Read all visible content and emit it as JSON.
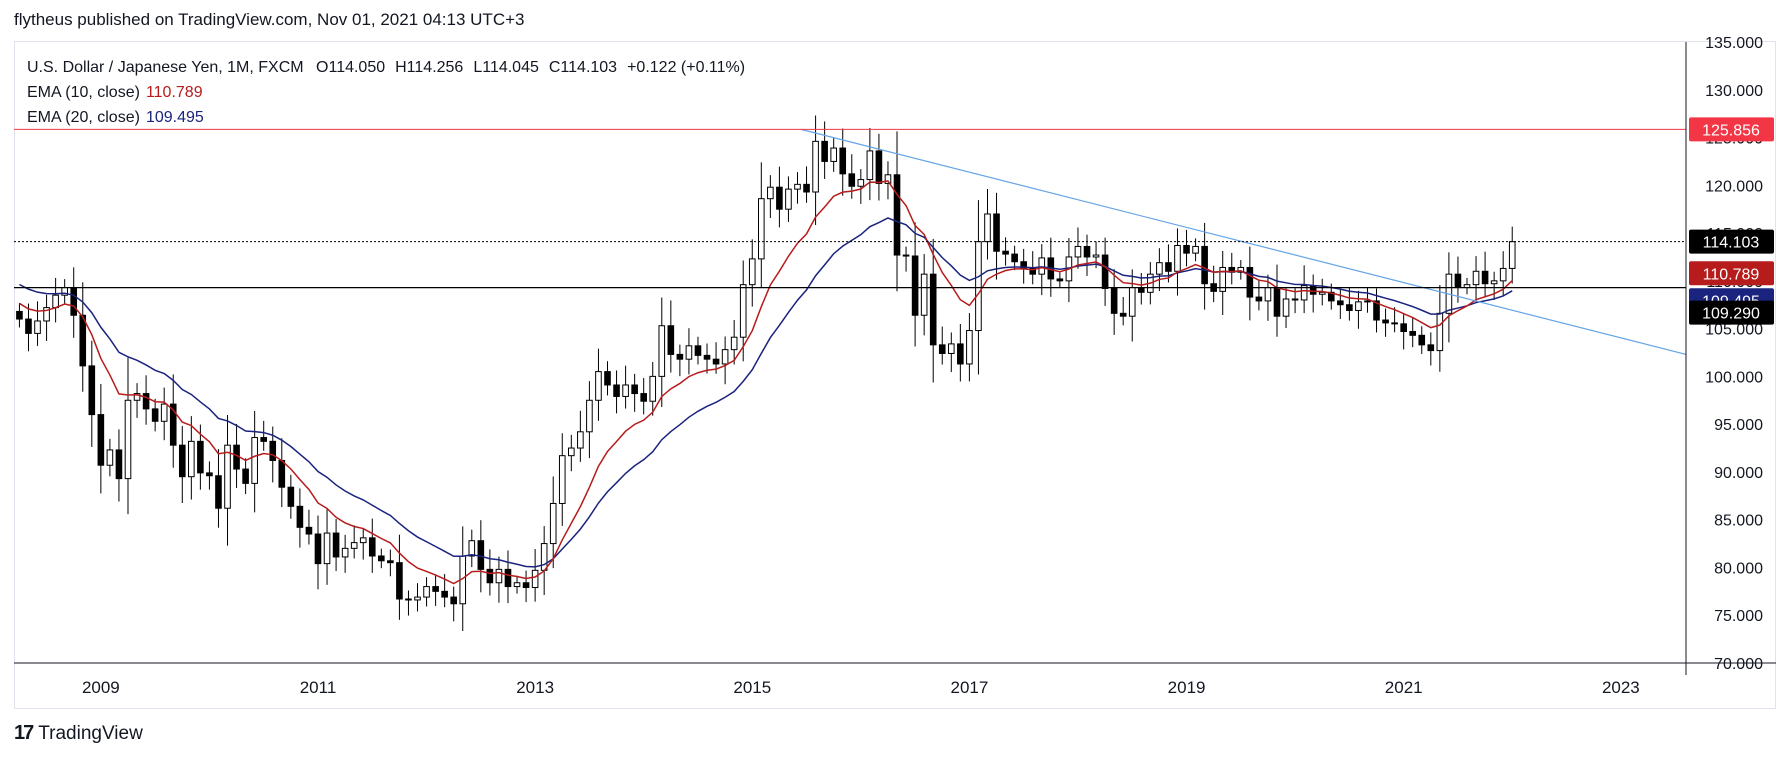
{
  "header": {
    "published": "flytheus published on TradingView.com, Nov 01, 2021 04:13 UTC+3"
  },
  "legend": {
    "symbol": "U.S. Dollar / Japanese Yen, 1M, FXCM",
    "open": "O114.050",
    "high": "H114.256",
    "low": "L114.045",
    "close": "C114.103",
    "change": "+0.122 (+0.11%)",
    "ema10_label": "EMA (10, close)",
    "ema10_value": "110.789",
    "ema20_label": "EMA (20, close)",
    "ema20_value": "109.495"
  },
  "footer": {
    "brand": "TradingView",
    "logo_icon": "tradingview-logo-icon"
  },
  "colors": {
    "up_body": "#ffffff",
    "down_body": "#000000",
    "wick": "#000000",
    "ema10": "#b71c1c",
    "ema20": "#1a237e",
    "trendline": "#64a4e6",
    "resistance": "#f23645",
    "support": "#000000",
    "last_price": "#000000"
  },
  "chart_data": {
    "type": "candlestick",
    "ylim": [
      70,
      135
    ],
    "yticks": [
      "70.000",
      "75.000",
      "80.000",
      "85.000",
      "90.000",
      "95.000",
      "100.000",
      "105.000",
      "110.000",
      "115.000",
      "120.000",
      "125.000",
      "130.000",
      "135.000"
    ],
    "xticks": [
      {
        "label": "2009",
        "t": 2009
      },
      {
        "label": "2011",
        "t": 2011
      },
      {
        "label": "2013",
        "t": 2013
      },
      {
        "label": "2015",
        "t": 2015
      },
      {
        "label": "2017",
        "t": 2017
      },
      {
        "label": "2019",
        "t": 2019
      },
      {
        "label": "2021",
        "t": 2021
      },
      {
        "label": "2023",
        "t": 2023
      }
    ],
    "xlim": [
      2008.2,
      2023.6
    ],
    "price_labels": [
      {
        "label": "125.856",
        "value": 125.856,
        "bg": "#f23645",
        "fg": "#ffffff"
      },
      {
        "label": "114.103",
        "value": 114.103,
        "bg": "#000000",
        "fg": "#ffffff"
      },
      {
        "label": "110.789",
        "value": 110.789,
        "bg": "#b71c1c",
        "fg": "#ffffff"
      },
      {
        "label": "109.495",
        "value": 109.495,
        "bg": "#1a237e",
        "fg": "#ffffff"
      },
      {
        "label": "109.290",
        "value": 109.29,
        "bg": "#000000",
        "fg": "#ffffff"
      }
    ],
    "resistance_level": 125.856,
    "support_level": 109.29,
    "last_price": 114.103,
    "trendline": {
      "start": [
        2015.45,
        125.856
      ],
      "end": [
        2023.6,
        102.3
      ]
    },
    "closes": [
      106.0,
      104.5,
      105.8,
      107.2,
      108.5,
      109.3,
      106.4,
      101.1,
      96.0,
      90.7,
      92.3,
      89.3,
      97.5,
      98.2,
      96.6,
      95.3,
      97.1,
      92.8,
      89.5,
      93.2,
      89.9,
      89.6,
      86.2,
      92.8,
      90.3,
      88.8,
      93.6,
      93.2,
      91.2,
      88.4,
      86.4,
      84.2,
      83.5,
      80.4,
      83.6,
      81.1,
      82.0,
      82.6,
      83.1,
      81.2,
      80.7,
      80.5,
      76.7,
      76.6,
      76.9,
      78.0,
      77.5,
      76.9,
      76.2,
      81.2,
      82.8,
      79.8,
      78.4,
      79.8,
      78.0,
      78.4,
      77.9,
      79.7,
      82.5,
      86.7,
      91.7,
      92.5,
      94.2,
      97.5,
      100.5,
      99.1,
      97.9,
      99.1,
      98.2,
      97.4,
      100.0,
      105.3,
      102.3,
      101.8,
      103.2,
      102.2,
      101.8,
      101.3,
      102.8,
      104.1,
      109.6,
      112.3,
      118.6,
      119.8,
      117.5,
      119.6,
      120.1,
      119.3,
      124.6,
      122.5,
      123.9,
      121.2,
      119.9,
      120.6,
      123.6,
      120.2,
      121.1,
      112.7,
      112.6,
      106.4,
      110.7,
      103.3,
      102.4,
      103.4,
      101.3,
      104.8,
      114.1,
      117.0,
      113.1,
      112.8,
      112.0,
      111.3,
      110.7,
      112.4,
      110.2,
      110.0,
      112.5,
      113.6,
      112.5,
      112.7,
      109.2,
      106.6,
      106.3,
      109.3,
      108.8,
      110.7,
      111.9,
      111.0,
      113.7,
      112.9,
      113.6,
      109.7,
      108.9,
      111.4,
      110.9,
      111.4,
      108.3,
      107.9,
      109.3,
      106.3,
      108.1,
      108.0,
      109.5,
      108.6,
      108.8,
      107.9,
      107.5,
      106.9,
      107.8,
      107.9,
      105.9,
      105.6,
      105.5,
      104.7,
      104.3,
      103.3,
      102.7,
      106.6,
      110.7,
      109.3,
      109.6,
      111.0,
      109.7,
      110.0,
      111.3,
      114.1
    ],
    "bar_start": 2008.25,
    "bar_step": 0.08333
  }
}
